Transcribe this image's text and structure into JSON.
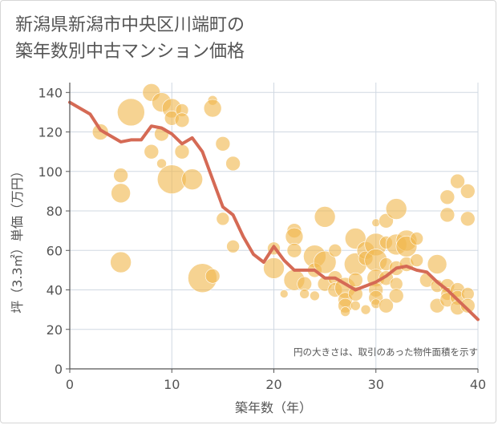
{
  "title_line1": "新潟県新潟市中央区川端町の",
  "title_line2": "築年数別中古マンション価格",
  "note": "円の大きさは、取引のあった物件面積を示す",
  "colors": {
    "bubble": "#f0b84f",
    "line": "#d56a55",
    "grid": "#d0d8e2",
    "axis": "#555555"
  },
  "chart_data": {
    "type": "scatter",
    "xlabel": "築年数（年）",
    "ylabel": "坪（3.3㎡）単価（万円）",
    "xlim": [
      0,
      40
    ],
    "ylim": [
      0,
      145
    ],
    "xticks": [
      0,
      10,
      20,
      30,
      40
    ],
    "yticks": [
      0,
      20,
      40,
      60,
      80,
      100,
      120,
      140
    ],
    "grid": true,
    "trend_line": {
      "x": [
        0,
        1,
        2,
        3,
        4,
        5,
        6,
        7,
        8,
        9,
        10,
        11,
        12,
        13,
        14,
        15,
        16,
        17,
        18,
        19,
        20,
        21,
        22,
        23,
        24,
        25,
        26,
        27,
        28,
        29,
        30,
        31,
        32,
        33,
        34,
        35,
        36,
        37,
        38,
        39,
        40
      ],
      "y": [
        135,
        132,
        129,
        121,
        118,
        115,
        116,
        116,
        123,
        122,
        119,
        114,
        117,
        110,
        96,
        82,
        78,
        67,
        58,
        54,
        62,
        55,
        50,
        50,
        50,
        46,
        46,
        43,
        40,
        42,
        44,
        47,
        51,
        52,
        50,
        49,
        44,
        40,
        35,
        30,
        25
      ]
    },
    "bubbles": [
      {
        "x": 3,
        "y": 120,
        "s": 10
      },
      {
        "x": 5,
        "y": 98,
        "s": 9
      },
      {
        "x": 5,
        "y": 89,
        "s": 12
      },
      {
        "x": 5,
        "y": 54,
        "s": 13
      },
      {
        "x": 6,
        "y": 130,
        "s": 17
      },
      {
        "x": 8,
        "y": 140,
        "s": 11
      },
      {
        "x": 8,
        "y": 110,
        "s": 9
      },
      {
        "x": 9,
        "y": 135,
        "s": 12
      },
      {
        "x": 9,
        "y": 119,
        "s": 9
      },
      {
        "x": 9,
        "y": 104,
        "s": 6
      },
      {
        "x": 10,
        "y": 132,
        "s": 12
      },
      {
        "x": 10,
        "y": 127,
        "s": 9
      },
      {
        "x": 10,
        "y": 96,
        "s": 18
      },
      {
        "x": 11,
        "y": 131,
        "s": 8
      },
      {
        "x": 11,
        "y": 126,
        "s": 9
      },
      {
        "x": 11,
        "y": 110,
        "s": 9
      },
      {
        "x": 12,
        "y": 96,
        "s": 13
      },
      {
        "x": 13,
        "y": 46,
        "s": 18
      },
      {
        "x": 14,
        "y": 136,
        "s": 6
      },
      {
        "x": 14,
        "y": 132,
        "s": 11
      },
      {
        "x": 14,
        "y": 47,
        "s": 9
      },
      {
        "x": 15,
        "y": 114,
        "s": 9
      },
      {
        "x": 15,
        "y": 76,
        "s": 8
      },
      {
        "x": 16,
        "y": 104,
        "s": 9
      },
      {
        "x": 16,
        "y": 62,
        "s": 8
      },
      {
        "x": 20,
        "y": 61,
        "s": 8
      },
      {
        "x": 20,
        "y": 51,
        "s": 13
      },
      {
        "x": 21,
        "y": 38,
        "s": 5
      },
      {
        "x": 22,
        "y": 70,
        "s": 9
      },
      {
        "x": 22,
        "y": 67,
        "s": 11
      },
      {
        "x": 22,
        "y": 60,
        "s": 9
      },
      {
        "x": 22,
        "y": 45,
        "s": 13
      },
      {
        "x": 23,
        "y": 43,
        "s": 9
      },
      {
        "x": 23,
        "y": 38,
        "s": 6
      },
      {
        "x": 24,
        "y": 57,
        "s": 14
      },
      {
        "x": 24,
        "y": 50,
        "s": 9
      },
      {
        "x": 24,
        "y": 37,
        "s": 6
      },
      {
        "x": 25,
        "y": 77,
        "s": 13
      },
      {
        "x": 25,
        "y": 54,
        "s": 14
      },
      {
        "x": 25,
        "y": 43,
        "s": 9
      },
      {
        "x": 26,
        "y": 60,
        "s": 8
      },
      {
        "x": 26,
        "y": 46,
        "s": 9
      },
      {
        "x": 26,
        "y": 40,
        "s": 9
      },
      {
        "x": 27,
        "y": 41,
        "s": 13
      },
      {
        "x": 27,
        "y": 35,
        "s": 9
      },
      {
        "x": 27,
        "y": 32,
        "s": 9
      },
      {
        "x": 27,
        "y": 29,
        "s": 6
      },
      {
        "x": 28,
        "y": 66,
        "s": 13
      },
      {
        "x": 28,
        "y": 53,
        "s": 14
      },
      {
        "x": 28,
        "y": 45,
        "s": 9
      },
      {
        "x": 28,
        "y": 38,
        "s": 9
      },
      {
        "x": 28,
        "y": 32,
        "s": 6
      },
      {
        "x": 29,
        "y": 60,
        "s": 11
      },
      {
        "x": 29,
        "y": 56,
        "s": 9
      },
      {
        "x": 29,
        "y": 30,
        "s": 6
      },
      {
        "x": 30,
        "y": 74,
        "s": 5
      },
      {
        "x": 30,
        "y": 63,
        "s": 14
      },
      {
        "x": 30,
        "y": 55,
        "s": 14
      },
      {
        "x": 30,
        "y": 46,
        "s": 11
      },
      {
        "x": 30,
        "y": 40,
        "s": 9
      },
      {
        "x": 30,
        "y": 36,
        "s": 9
      },
      {
        "x": 30,
        "y": 33,
        "s": 6
      },
      {
        "x": 31,
        "y": 75,
        "s": 9
      },
      {
        "x": 31,
        "y": 64,
        "s": 8
      },
      {
        "x": 31,
        "y": 53,
        "s": 8
      },
      {
        "x": 31,
        "y": 46,
        "s": 9
      },
      {
        "x": 31,
        "y": 32,
        "s": 9
      },
      {
        "x": 32,
        "y": 81,
        "s": 13
      },
      {
        "x": 32,
        "y": 63,
        "s": 13
      },
      {
        "x": 32,
        "y": 51,
        "s": 9
      },
      {
        "x": 32,
        "y": 43,
        "s": 8
      },
      {
        "x": 32,
        "y": 37,
        "s": 9
      },
      {
        "x": 33,
        "y": 65,
        "s": 13
      },
      {
        "x": 33,
        "y": 62,
        "s": 13
      },
      {
        "x": 33,
        "y": 53,
        "s": 9
      },
      {
        "x": 34,
        "y": 66,
        "s": 8
      },
      {
        "x": 34,
        "y": 55,
        "s": 8
      },
      {
        "x": 35,
        "y": 45,
        "s": 9
      },
      {
        "x": 36,
        "y": 53,
        "s": 12
      },
      {
        "x": 36,
        "y": 42,
        "s": 8
      },
      {
        "x": 36,
        "y": 32,
        "s": 9
      },
      {
        "x": 37,
        "y": 87,
        "s": 9
      },
      {
        "x": 37,
        "y": 78,
        "s": 9
      },
      {
        "x": 37,
        "y": 42,
        "s": 9
      },
      {
        "x": 37,
        "y": 38,
        "s": 8
      },
      {
        "x": 37,
        "y": 35,
        "s": 9
      },
      {
        "x": 38,
        "y": 95,
        "s": 9
      },
      {
        "x": 38,
        "y": 40,
        "s": 9
      },
      {
        "x": 38,
        "y": 36,
        "s": 9
      },
      {
        "x": 38,
        "y": 31,
        "s": 9
      },
      {
        "x": 39,
        "y": 90,
        "s": 9
      },
      {
        "x": 39,
        "y": 76,
        "s": 9
      },
      {
        "x": 39,
        "y": 38,
        "s": 8
      },
      {
        "x": 39,
        "y": 32,
        "s": 9
      }
    ]
  }
}
